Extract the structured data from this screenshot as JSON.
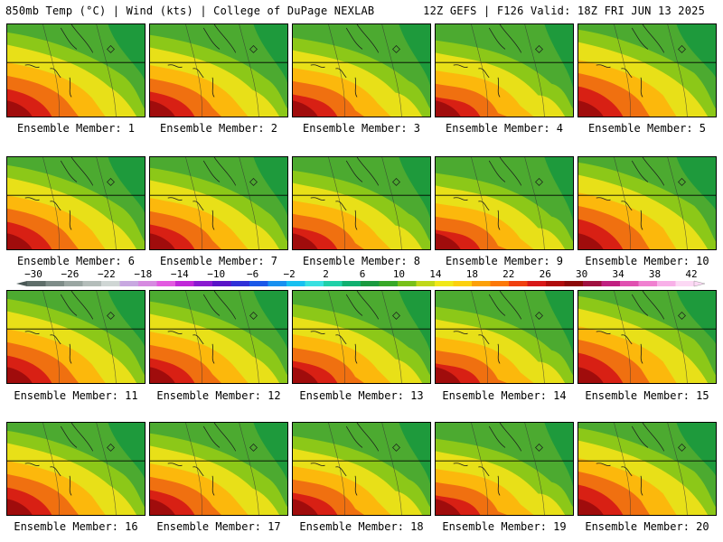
{
  "header": {
    "left": "850mb Temp (°C) | Wind (kts) | College of DuPage NEXLAB",
    "right": "12Z GEFS | F126 Valid: 18Z FRI JUN 13 2025"
  },
  "panels": [
    {
      "label": "Ensemble Member: 1"
    },
    {
      "label": "Ensemble Member: 2"
    },
    {
      "label": "Ensemble Member: 3"
    },
    {
      "label": "Ensemble Member: 4"
    },
    {
      "label": "Ensemble Member: 5"
    },
    {
      "label": "Ensemble Member: 6"
    },
    {
      "label": "Ensemble Member: 7"
    },
    {
      "label": "Ensemble Member: 8"
    },
    {
      "label": "Ensemble Member: 9"
    },
    {
      "label": "Ensemble Member: 10"
    },
    {
      "label": "Ensemble Member: 11"
    },
    {
      "label": "Ensemble Member: 12"
    },
    {
      "label": "Ensemble Member: 13"
    },
    {
      "label": "Ensemble Member: 14"
    },
    {
      "label": "Ensemble Member: 15"
    },
    {
      "label": "Ensemble Member: 16"
    },
    {
      "label": "Ensemble Member: 17"
    },
    {
      "label": "Ensemble Member: 18"
    },
    {
      "label": "Ensemble Member: 19"
    },
    {
      "label": "Ensemble Member: 20"
    }
  ],
  "colorbar": {
    "ticks": [
      "−30",
      "−26",
      "−22",
      "−18",
      "−14",
      "−10",
      "−6",
      "−2",
      "2",
      "6",
      "10",
      "14",
      "18",
      "22",
      "26",
      "30",
      "34",
      "38",
      "42"
    ],
    "colors": [
      "#5f6e6a",
      "#7e8c88",
      "#9aa6a2",
      "#b4bdba",
      "#cfd6d4",
      "#c8a8e0",
      "#d68ae0",
      "#e25ae0",
      "#c028d8",
      "#8a1ad0",
      "#5a14c8",
      "#3030d8",
      "#1a58e8",
      "#1890f0",
      "#18c0f0",
      "#38e0e0",
      "#20d0a8",
      "#10b070",
      "#1a9a40",
      "#38a828",
      "#78c018",
      "#c0d818",
      "#f0e818",
      "#fcd00e",
      "#fca008",
      "#fc7808",
      "#f04010",
      "#d81818",
      "#b00c0c",
      "#8c0808",
      "#a01040",
      "#c02080",
      "#e050b0",
      "#f080d0",
      "#f8b0e8",
      "#fcd8f4"
    ]
  }
}
